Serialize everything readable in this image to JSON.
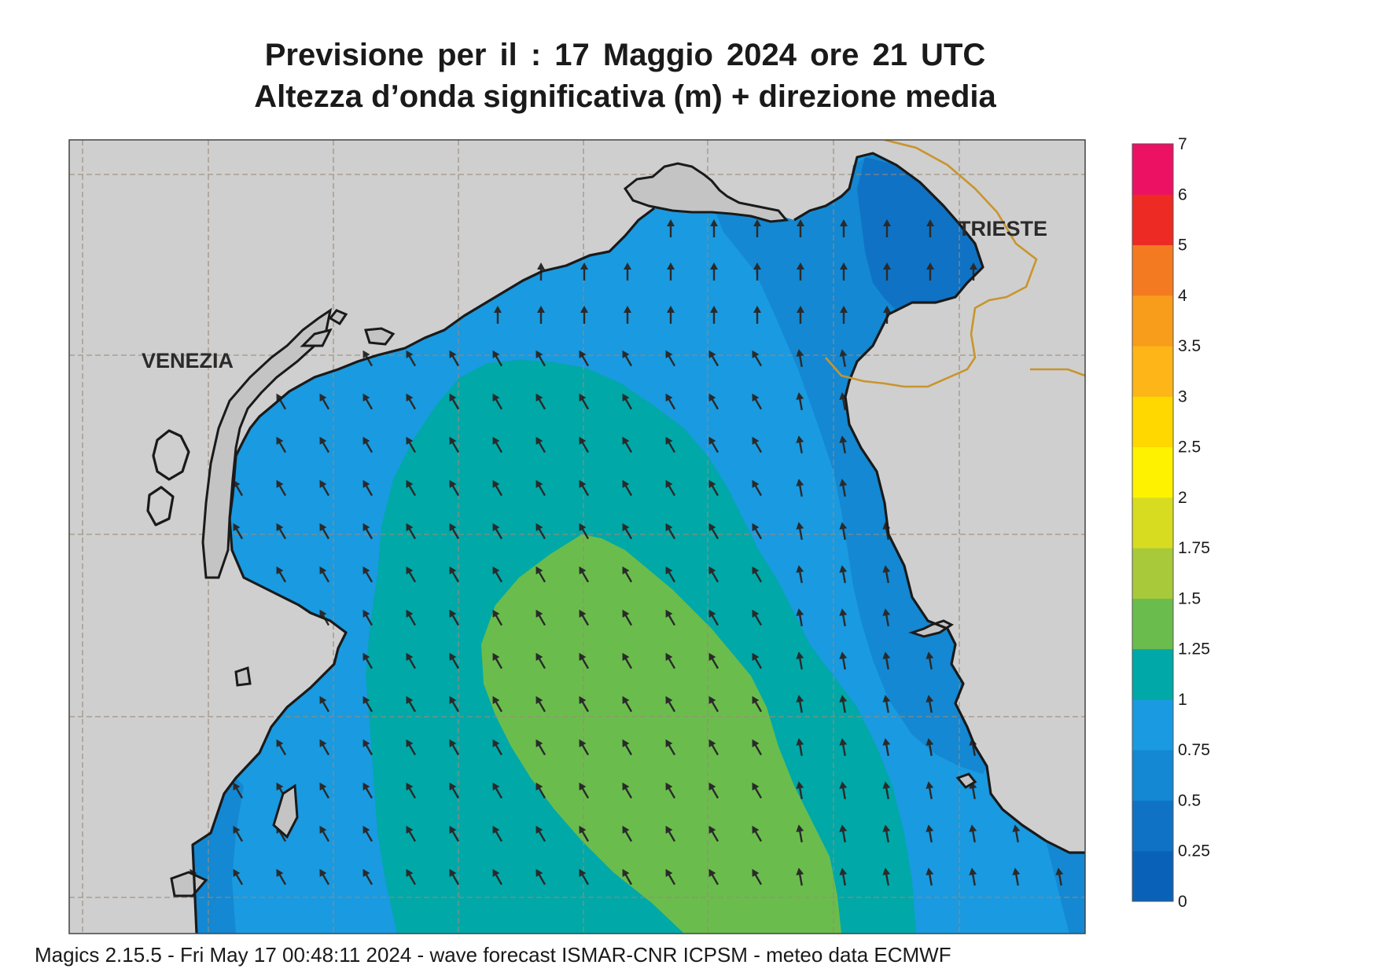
{
  "title": {
    "line1": "Previsione per il  :  17   Maggio  2024   ore 21 UTC",
    "line2": "Altezza d’onda significativa (m) + direzione media"
  },
  "map": {
    "cities": [
      {
        "name": "VENEZIA"
      },
      {
        "name": "TRIESTE"
      }
    ],
    "wave_direction": "north-northwest",
    "colors": {
      "land": "#cfcfcf",
      "coast": "#1a1a1a",
      "border": "#c8952e",
      "grid": "#9b8a7a",
      "arrow": "#2a2a2a"
    }
  },
  "legend": {
    "labels": [
      "0",
      "0.25",
      "0.5",
      "0.75",
      "1",
      "1.25",
      "1.5",
      "1.75",
      "2",
      "2.5",
      "3",
      "3.5",
      "4",
      "5",
      "6",
      "7"
    ],
    "colors": [
      "#0a62b8",
      "#0f72c4",
      "#1488d2",
      "#1a9ae0",
      "#00a8a8",
      "#6abd4c",
      "#a8ca3a",
      "#d8dc20",
      "#fff200",
      "#ffd800",
      "#fdb517",
      "#f89c1c",
      "#f47a22",
      "#ee2a24",
      "#ed1164"
    ]
  },
  "footer": {
    "text": "Magics 2.15.5 - Fri May 17 00:48:11 2024 - wave forecast  ISMAR-CNR  ICPSM - meteo data    ECMWF"
  }
}
